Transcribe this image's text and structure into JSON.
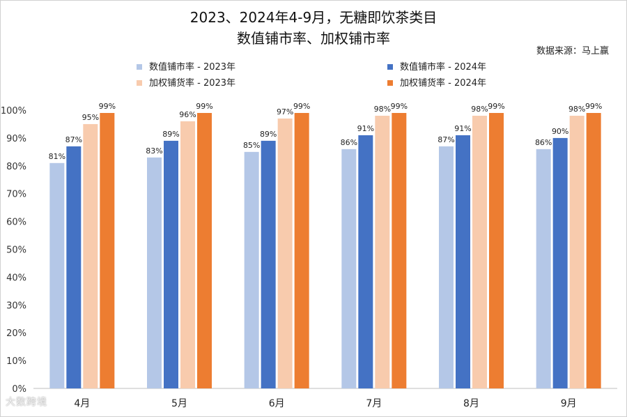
{
  "chart_data": {
    "type": "bar",
    "title_line1": "2023、2024年4-9月，无糖即饮茶类目",
    "title_line2": "数值铺市率、加权铺市率",
    "source": "数据来源：马上赢",
    "categories": [
      "4月",
      "5月",
      "6月",
      "7月",
      "8月",
      "9月"
    ],
    "series": [
      {
        "name": "数值铺市率 - 2023年",
        "color": "#b4c7e7",
        "values": [
          81,
          83,
          85,
          86,
          87,
          86
        ]
      },
      {
        "name": "数值铺市率 - 2024年",
        "color": "#4472c4",
        "values": [
          87,
          89,
          89,
          91,
          91,
          90
        ]
      },
      {
        "name": "加权铺货率 - 2023年",
        "color": "#f8cbad",
        "values": [
          95,
          96,
          97,
          98,
          98,
          98
        ]
      },
      {
        "name": "加权铺货率 - 2024年",
        "color": "#ed7d31",
        "values": [
          99,
          99,
          99,
          99,
          99,
          99
        ]
      }
    ],
    "ylim": [
      0,
      100
    ],
    "y_ticks": [
      "0%",
      "10%",
      "20%",
      "30%",
      "40%",
      "50%",
      "60%",
      "70%",
      "80%",
      "90%",
      "100%"
    ],
    "value_suffix": "%",
    "legend_position": "top",
    "grid": false
  },
  "watermark": "大数跨境"
}
